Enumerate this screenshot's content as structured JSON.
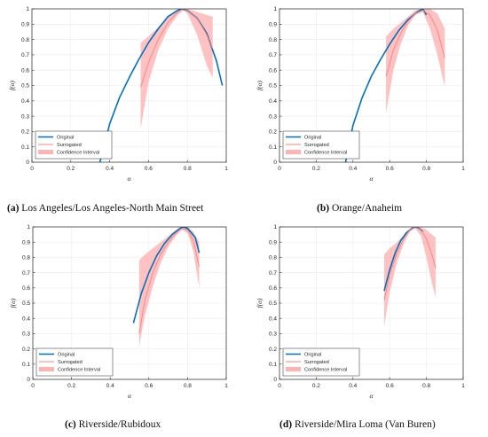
{
  "captions": [
    {
      "label": "(a)",
      "text": "Los Angeles/Los Angeles-North Main Street"
    },
    {
      "label": "(b)",
      "text": "Orange/Anaheim"
    },
    {
      "label": "(c)",
      "text": "Riverside/Rubidoux"
    },
    {
      "label": "(d)",
      "text": "Riverside/Mira Loma (Van Buren)"
    }
  ],
  "colors": {
    "original": "#0072bd",
    "surrogated": "#ff8080",
    "band": "#ffb3b3",
    "axis": "#262626",
    "grid": "#ececec"
  },
  "chart_data": [
    {
      "type": "line",
      "xlabel": "α",
      "ylabel": "f(α)",
      "xlim": [
        0,
        1
      ],
      "ylim": [
        0,
        1
      ],
      "xticks": [
        "0",
        "0.2",
        "0.4",
        "0.6",
        "0.8",
        "1"
      ],
      "yticks": [
        "0",
        "0.1",
        "0.2",
        "0.3",
        "0.4",
        "0.5",
        "0.6",
        "0.7",
        "0.8",
        "0.9",
        "1"
      ],
      "legend": {
        "placement": "bottom-left",
        "entries": [
          "Original",
          "Surrogated",
          "Confidence Interval"
        ]
      },
      "series": [
        {
          "name": "Original",
          "x": [
            0.35,
            0.4,
            0.45,
            0.5,
            0.55,
            0.6,
            0.65,
            0.7,
            0.75,
            0.77,
            0.8,
            0.85,
            0.9,
            0.95,
            0.98
          ],
          "y": [
            0.0,
            0.25,
            0.42,
            0.55,
            0.67,
            0.78,
            0.87,
            0.95,
            0.99,
            1.0,
            0.99,
            0.94,
            0.84,
            0.66,
            0.5
          ]
        },
        {
          "name": "Surrogated",
          "x": [
            0.56,
            0.6,
            0.65,
            0.7,
            0.75,
            0.78,
            0.8,
            0.85,
            0.9,
            0.93
          ],
          "y": [
            0.49,
            0.65,
            0.8,
            0.91,
            0.98,
            1.0,
            0.99,
            0.94,
            0.83,
            0.74
          ]
        },
        {
          "name": "Confidence Interval",
          "x": [
            0.56,
            0.6,
            0.65,
            0.7,
            0.75,
            0.78,
            0.8,
            0.85,
            0.9,
            0.93
          ],
          "lower": [
            0.22,
            0.52,
            0.73,
            0.87,
            0.96,
            0.99,
            0.97,
            0.83,
            0.63,
            0.55
          ],
          "upper": [
            0.78,
            0.82,
            0.88,
            0.95,
            0.99,
            1.0,
            1.0,
            0.98,
            0.96,
            0.95
          ]
        }
      ]
    },
    {
      "type": "line",
      "xlabel": "α",
      "ylabel": "f(α)",
      "xlim": [
        0,
        1
      ],
      "ylim": [
        0,
        1
      ],
      "xticks": [
        "0",
        "0.2",
        "0.4",
        "0.6",
        "0.8",
        "1"
      ],
      "yticks": [
        "0",
        "0.1",
        "0.2",
        "0.3",
        "0.4",
        "0.5",
        "0.6",
        "0.7",
        "0.8",
        "0.9",
        "1"
      ],
      "legend": {
        "placement": "bottom-left",
        "entries": [
          "Original",
          "Surrogated",
          "Confidence Interval"
        ]
      },
      "series": [
        {
          "name": "Original",
          "x": [
            0.36,
            0.4,
            0.45,
            0.5,
            0.55,
            0.6,
            0.65,
            0.7,
            0.75,
            0.78,
            0.8
          ],
          "y": [
            0.0,
            0.24,
            0.42,
            0.56,
            0.67,
            0.77,
            0.86,
            0.93,
            0.98,
            1.0,
            0.96
          ]
        },
        {
          "name": "Surrogated",
          "x": [
            0.58,
            0.62,
            0.66,
            0.7,
            0.74,
            0.78,
            0.82,
            0.86,
            0.9
          ],
          "y": [
            0.56,
            0.73,
            0.84,
            0.92,
            0.97,
            0.99,
            0.96,
            0.86,
            0.68
          ]
        },
        {
          "name": "Confidence Interval",
          "x": [
            0.58,
            0.62,
            0.66,
            0.7,
            0.74,
            0.78,
            0.82,
            0.86,
            0.9
          ],
          "lower": [
            0.32,
            0.6,
            0.77,
            0.89,
            0.96,
            0.98,
            0.87,
            0.7,
            0.49
          ],
          "upper": [
            0.82,
            0.87,
            0.91,
            0.95,
            0.99,
            1.0,
            1.0,
            0.97,
            0.87
          ]
        }
      ]
    },
    {
      "type": "line",
      "xlabel": "α",
      "ylabel": "f(α)",
      "xlim": [
        0,
        1
      ],
      "ylim": [
        0,
        1
      ],
      "xticks": [
        "0",
        "0.2",
        "0.4",
        "0.6",
        "0.8",
        "1"
      ],
      "yticks": [
        "0",
        "0.1",
        "0.2",
        "0.3",
        "0.4",
        "0.5",
        "0.6",
        "0.7",
        "0.8",
        "0.9",
        "1"
      ],
      "legend": {
        "placement": "bottom-left",
        "entries": [
          "Original",
          "Surrogated",
          "Confidence Interval"
        ]
      },
      "series": [
        {
          "name": "Original",
          "x": [
            0.52,
            0.56,
            0.6,
            0.64,
            0.68,
            0.72,
            0.76,
            0.78,
            0.8,
            0.84,
            0.86
          ],
          "y": [
            0.37,
            0.56,
            0.7,
            0.81,
            0.89,
            0.95,
            0.99,
            1.0,
            0.99,
            0.93,
            0.83
          ]
        },
        {
          "name": "Surrogated",
          "x": [
            0.55,
            0.58,
            0.62,
            0.66,
            0.7,
            0.74,
            0.77,
            0.8,
            0.83,
            0.86
          ],
          "y": [
            0.3,
            0.52,
            0.7,
            0.82,
            0.9,
            0.96,
            0.99,
            0.98,
            0.91,
            0.74
          ]
        },
        {
          "name": "Confidence Interval",
          "x": [
            0.55,
            0.58,
            0.62,
            0.66,
            0.7,
            0.74,
            0.77,
            0.8,
            0.83,
            0.86
          ],
          "lower": [
            0.22,
            0.42,
            0.61,
            0.76,
            0.87,
            0.94,
            0.98,
            0.96,
            0.84,
            0.6
          ],
          "upper": [
            0.78,
            0.82,
            0.86,
            0.9,
            0.94,
            0.98,
            1.0,
            1.0,
            0.97,
            0.9
          ]
        }
      ]
    },
    {
      "type": "line",
      "xlabel": "α",
      "ylabel": "f(α)",
      "xlim": [
        0,
        1
      ],
      "ylim": [
        0,
        1
      ],
      "xticks": [
        "0",
        "0.2",
        "0.4",
        "0.6",
        "0.8",
        "1"
      ],
      "yticks": [
        "0",
        "0.1",
        "0.2",
        "0.3",
        "0.4",
        "0.5",
        "0.6",
        "0.7",
        "0.8",
        "0.9",
        "1"
      ],
      "legend": {
        "placement": "bottom-left",
        "entries": [
          "Original",
          "Surrogated",
          "Confidence Interval"
        ]
      },
      "series": [
        {
          "name": "Original",
          "x": [
            0.57,
            0.6,
            0.63,
            0.66,
            0.69,
            0.72,
            0.74,
            0.76,
            0.78
          ],
          "y": [
            0.58,
            0.72,
            0.83,
            0.91,
            0.96,
            0.99,
            1.0,
            0.99,
            0.97
          ]
        },
        {
          "name": "Surrogated",
          "x": [
            0.57,
            0.6,
            0.64,
            0.68,
            0.71,
            0.74,
            0.77,
            0.8,
            0.83,
            0.85
          ],
          "y": [
            0.52,
            0.69,
            0.83,
            0.93,
            0.98,
            1.0,
            0.98,
            0.92,
            0.82,
            0.73
          ]
        },
        {
          "name": "Confidence Interval",
          "x": [
            0.57,
            0.6,
            0.64,
            0.68,
            0.71,
            0.74,
            0.77,
            0.8,
            0.83,
            0.85
          ],
          "lower": [
            0.35,
            0.57,
            0.77,
            0.9,
            0.97,
            0.99,
            0.94,
            0.8,
            0.63,
            0.54
          ],
          "upper": [
            0.82,
            0.86,
            0.9,
            0.95,
            0.99,
            1.0,
            1.0,
            0.98,
            0.95,
            0.93
          ]
        }
      ]
    }
  ]
}
